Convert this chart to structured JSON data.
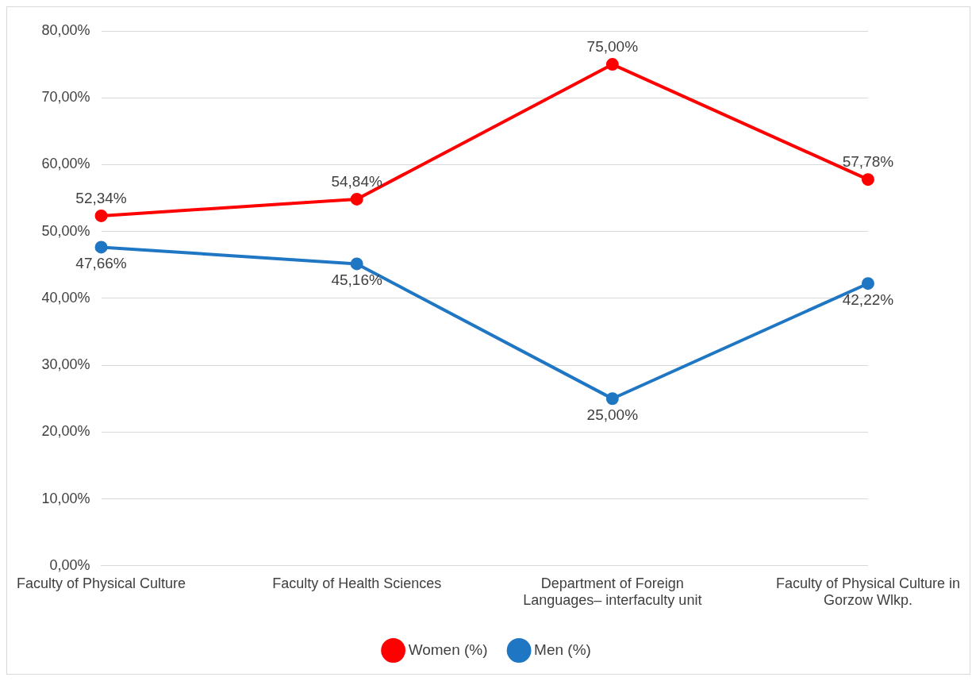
{
  "chart_data": {
    "type": "line",
    "categories": [
      "Faculty of Physical Culture",
      "Faculty of Health Sciences",
      "Department of Foreign Languages– interfaculty unit",
      "Faculty of Physical Culture in Gorzow Wlkp."
    ],
    "series": [
      {
        "name": "Women (%)",
        "color": "#ff0000",
        "values": [
          52.34,
          54.84,
          75.0,
          57.78
        ],
        "value_labels": [
          "52,34%",
          "54,84%",
          "75,00%",
          "57,78%"
        ]
      },
      {
        "name": "Men (%)",
        "color": "#1f77c4",
        "values": [
          47.66,
          45.16,
          25.0,
          42.22
        ],
        "value_labels": [
          "47,66%",
          "45,16%",
          "25,00%",
          "42,22%"
        ]
      }
    ],
    "ylim": [
      0,
      80
    ],
    "yticks": [
      {
        "value": 0,
        "label": "0,00%"
      },
      {
        "value": 10,
        "label": "10,00%"
      },
      {
        "value": 20,
        "label": "20,00%"
      },
      {
        "value": 30,
        "label": "30,00%"
      },
      {
        "value": 40,
        "label": "40,00%"
      },
      {
        "value": 50,
        "label": "50,00%"
      },
      {
        "value": 60,
        "label": "60,00%"
      },
      {
        "value": 70,
        "label": "70,00%"
      },
      {
        "value": 80,
        "label": "80,00%"
      }
    ],
    "grid": "y",
    "legend": "bottom",
    "marker": "circle",
    "line_style": "solid"
  }
}
